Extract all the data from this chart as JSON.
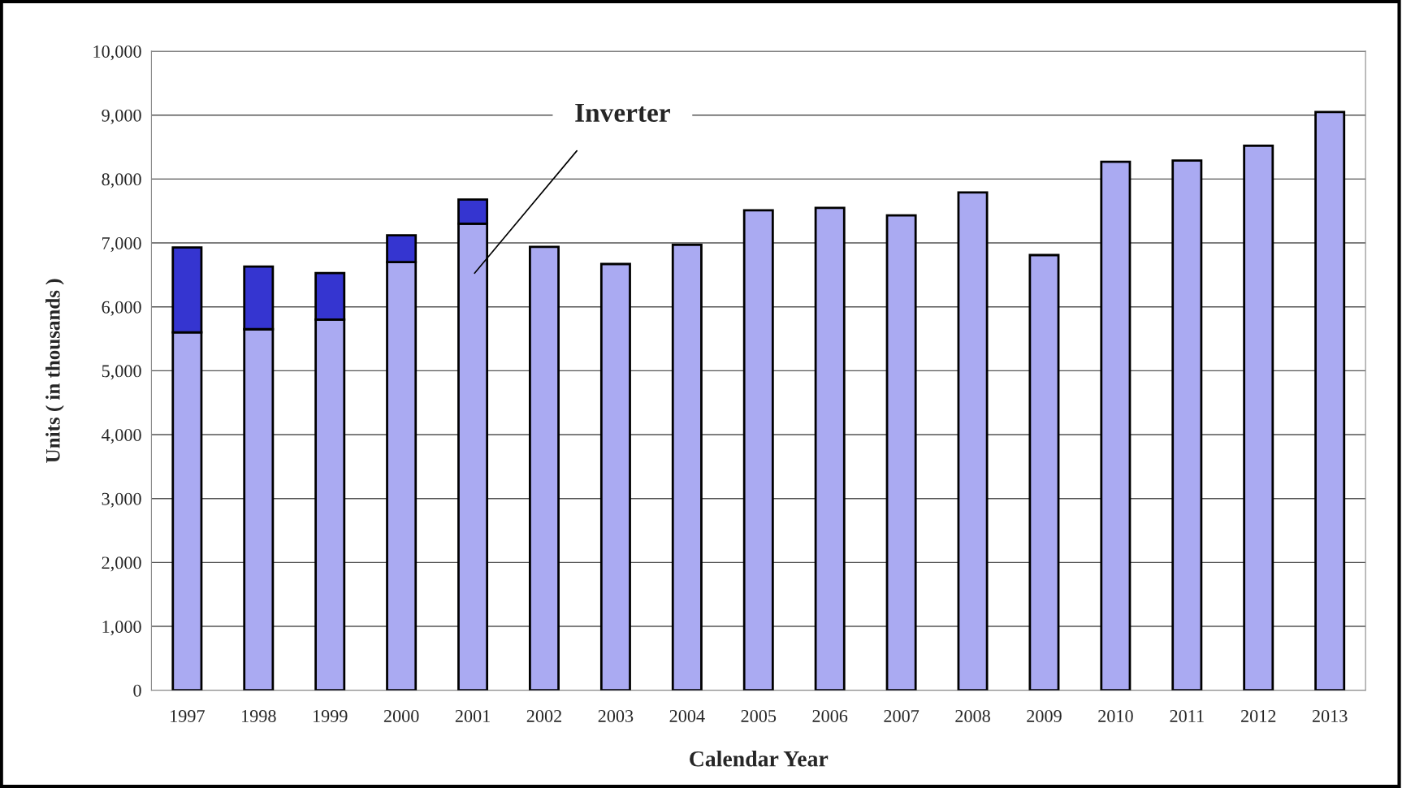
{
  "chart_data": {
    "type": "bar",
    "stacked": true,
    "xlabel": "Calendar Year",
    "ylabel": "Units ( in thousands )",
    "categories": [
      "1997",
      "1998",
      "1999",
      "2000",
      "2001",
      "2002",
      "2003",
      "2004",
      "2005",
      "2006",
      "2007",
      "2008",
      "2009",
      "2010",
      "2011",
      "2012",
      "2013"
    ],
    "series": [
      {
        "color": "#aaaaf2",
        "values": [
          5600,
          5650,
          5800,
          6700,
          7300,
          6940,
          6670,
          6970,
          7510,
          7550,
          7430,
          7790,
          6810,
          8270,
          8290,
          8520,
          9050
        ]
      },
      {
        "color": "#3535d0",
        "values": [
          1330,
          980,
          730,
          420,
          380,
          null,
          null,
          null,
          null,
          null,
          null,
          null,
          null,
          null,
          null,
          null,
          null
        ]
      }
    ],
    "annotations": [
      "Inverter"
    ],
    "ylim": [
      0,
      10000
    ],
    "yticks": [
      0,
      {
        "value": 1000,
        "label": "1,000"
      },
      {
        "value": 2000,
        "label": "2,000"
      },
      {
        "value": 3000,
        "label": "3,000"
      },
      {
        "value": 4000,
        "label": "4,000"
      },
      {
        "value": 5000,
        "label": "5,000"
      },
      {
        "value": 6000,
        "label": "6,000"
      },
      {
        "value": 7000,
        "label": "7,000"
      },
      {
        "value": 8000,
        "label": "8,000"
      },
      {
        "value": 9000,
        "label": "9,000"
      },
      {
        "value": 10000,
        "label": "10,000"
      }
    ],
    "grid": "y"
  }
}
